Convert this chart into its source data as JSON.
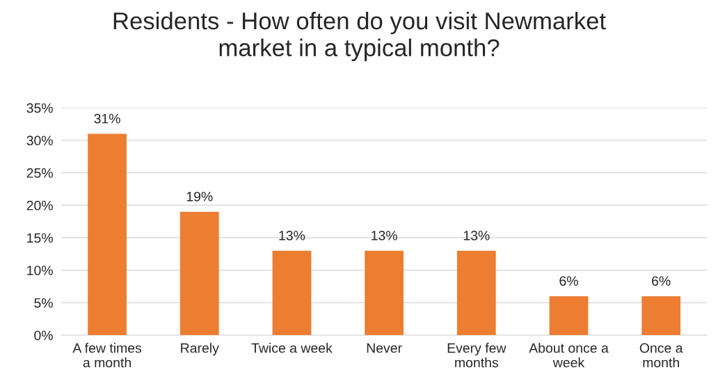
{
  "chart_data": {
    "type": "bar",
    "title": "Residents - How often do you visit Newmarket\nmarket in a typical month?",
    "categories": [
      "A few times\na month",
      "Rarely",
      "Twice a week",
      "Never",
      "Every few\nmonths",
      "About once a\nweek",
      "Once a\nmonth"
    ],
    "values": [
      31,
      19,
      13,
      13,
      13,
      6,
      6
    ],
    "color": "#ed7d31",
    "value_labels": [
      "31%",
      "19%",
      "13%",
      "13%",
      "13%",
      "6%",
      "6%"
    ],
    "ylim": [
      0,
      35
    ],
    "yticks": [
      {
        "value": 0,
        "label": "0%"
      },
      {
        "value": 5,
        "label": "5%"
      },
      {
        "value": 10,
        "label": "10%"
      },
      {
        "value": 15,
        "label": "15%"
      },
      {
        "value": 20,
        "label": "20%"
      },
      {
        "value": 25,
        "label": "25%"
      },
      {
        "value": 30,
        "label": "30%"
      },
      {
        "value": 35,
        "label": "35%"
      }
    ],
    "grid": "y"
  }
}
